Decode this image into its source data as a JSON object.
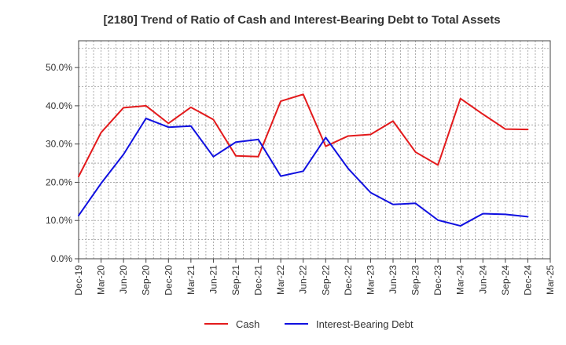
{
  "chart_data": {
    "type": "line",
    "title": "[2180]  Trend of Ratio of Cash and Interest-Bearing Debt to Total Assets",
    "xlabel": "",
    "ylabel": "",
    "x": [
      "Dec-19",
      "Mar-20",
      "Jun-20",
      "Sep-20",
      "Dec-20",
      "Mar-21",
      "Jun-21",
      "Sep-21",
      "Dec-21",
      "Mar-22",
      "Jun-22",
      "Sep-22",
      "Dec-22",
      "Mar-23",
      "Jun-23",
      "Sep-23",
      "Dec-23",
      "Mar-24",
      "Jun-24",
      "Sep-24",
      "Dec-24",
      "Mar-25"
    ],
    "ylim": [
      0,
      0.57
    ],
    "yticks": [
      0,
      0.1,
      0.2,
      0.3,
      0.4,
      0.5
    ],
    "ytick_labels": [
      "0.0%",
      "10.0%",
      "20.0%",
      "30.0%",
      "40.0%",
      "50.0%"
    ],
    "grid": true,
    "legend_position": "bottom",
    "series": [
      {
        "name": "Cash",
        "color": "#e31a1c",
        "values": [
          0.215,
          0.33,
          0.395,
          0.4,
          0.354,
          0.396,
          0.364,
          0.269,
          0.267,
          0.412,
          0.43,
          0.294,
          0.321,
          0.325,
          0.36,
          0.279,
          0.245,
          0.419,
          0.378,
          0.339,
          0.338,
          null
        ]
      },
      {
        "name": "Interest-Bearing Debt",
        "color": "#1010e0",
        "values": [
          0.113,
          0.197,
          0.273,
          0.367,
          0.344,
          0.347,
          0.267,
          0.305,
          0.312,
          0.216,
          0.229,
          0.317,
          0.236,
          0.173,
          0.142,
          0.145,
          0.101,
          0.086,
          0.118,
          0.116,
          0.11,
          null
        ]
      }
    ]
  }
}
